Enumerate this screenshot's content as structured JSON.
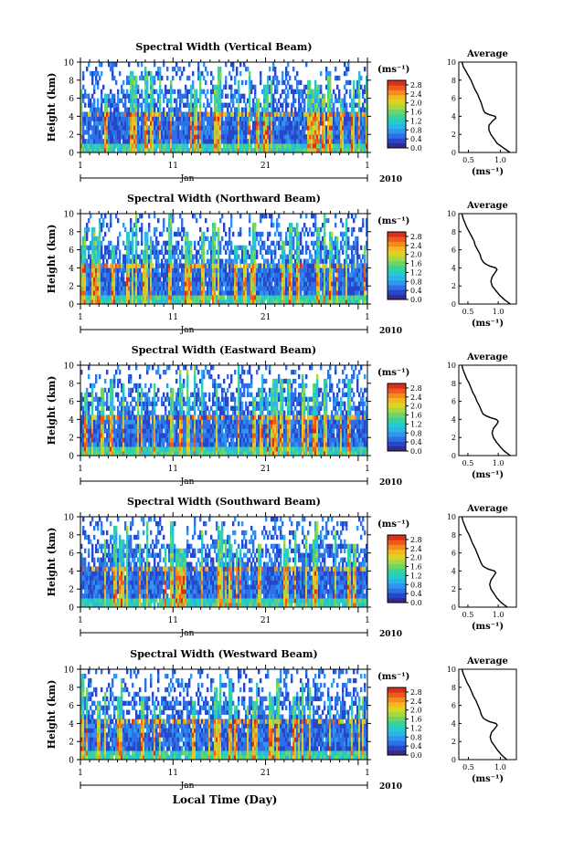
{
  "figure": {
    "x_axis_label": "Local Time (Day)"
  },
  "colors": {
    "colormap": [
      "#3b2a8a",
      "#2846c8",
      "#2f6fe6",
      "#2f96f0",
      "#2ab6e6",
      "#22ccc8",
      "#3ad29a",
      "#6ed466",
      "#a8d840",
      "#dad426",
      "#f5b820",
      "#f58a1e",
      "#ee5a1c",
      "#d8301a"
    ]
  },
  "chart_data": [
    {
      "type": "heatmap",
      "title": "Spectral Width (Vertical Beam)",
      "ylabel": "Height (km)",
      "ylim": [
        0,
        10
      ],
      "yticks": [
        "0",
        "2",
        "4",
        "6",
        "8",
        "10"
      ],
      "xlim": [
        1,
        32
      ],
      "xticks": [
        "1",
        "11",
        "21",
        "1"
      ],
      "x_month_label": "Jan",
      "x_year_label": "2010",
      "colorbar": {
        "unit": "(ms⁻¹)",
        "ticks": [
          "0.0",
          "0.4",
          "0.8",
          "1.2",
          "1.6",
          "2.0",
          "2.4",
          "2.8"
        ],
        "range": [
          0.0,
          3.0
        ]
      },
      "profile": {
        "title": "Average",
        "xlabel": "(ms⁻¹)",
        "xticks": [
          "0.5",
          "1.0"
        ],
        "xlim": [
          0.35,
          1.25
        ],
        "yticks": [
          "0",
          "2",
          "4",
          "6",
          "8",
          "10"
        ],
        "height_km": [
          0,
          0.5,
          1,
          1.5,
          2,
          2.5,
          3,
          3.5,
          3.8,
          4,
          4.2,
          4.4,
          4.6,
          5,
          5.5,
          6,
          6.5,
          7,
          7.5,
          8,
          8.5,
          9,
          9.5,
          10
        ],
        "spectral_width": [
          1.15,
          1.05,
          0.95,
          0.9,
          0.85,
          0.82,
          0.82,
          0.88,
          0.93,
          0.92,
          0.82,
          0.76,
          0.74,
          0.72,
          0.7,
          0.67,
          0.64,
          0.6,
          0.57,
          0.54,
          0.5,
          0.46,
          0.42,
          0.4
        ]
      }
    },
    {
      "type": "heatmap",
      "title": "Spectral Width (Northward Beam)",
      "ylabel": "Height (km)",
      "ylim": [
        0,
        10
      ],
      "yticks": [
        "0",
        "2",
        "4",
        "6",
        "8",
        "10"
      ],
      "xlim": [
        1,
        32
      ],
      "xticks": [
        "1",
        "11",
        "21",
        "1"
      ],
      "x_month_label": "Jan",
      "x_year_label": "2010",
      "colorbar": {
        "unit": "(ms⁻¹)",
        "ticks": [
          "0.0",
          "0.4",
          "0.8",
          "1.2",
          "1.6",
          "2.0",
          "2.4",
          "2.8"
        ],
        "range": [
          0.0,
          3.0
        ]
      },
      "profile": {
        "title": "Average",
        "xlabel": "(ms⁻¹)",
        "xticks": [
          "0.5",
          "1.0"
        ],
        "xlim": [
          0.35,
          1.3
        ],
        "yticks": [
          "0",
          "2",
          "4",
          "6",
          "8",
          "10"
        ],
        "height_km": [
          0,
          0.5,
          1,
          1.5,
          2,
          2.5,
          3,
          3.5,
          3.8,
          4,
          4.2,
          4.4,
          4.6,
          5,
          5.5,
          6,
          6.5,
          7,
          7.5,
          8,
          8.5,
          9,
          9.5,
          10
        ],
        "spectral_width": [
          1.2,
          1.1,
          1.02,
          0.96,
          0.9,
          0.88,
          0.9,
          0.95,
          0.98,
          0.96,
          0.86,
          0.8,
          0.76,
          0.72,
          0.7,
          0.66,
          0.62,
          0.6,
          0.56,
          0.52,
          0.48,
          0.45,
          0.42,
          0.4
        ]
      }
    },
    {
      "type": "heatmap",
      "title": "Spectral Width (Eastward Beam)",
      "ylabel": "Height (km)",
      "ylim": [
        0,
        10
      ],
      "yticks": [
        "0",
        "2",
        "4",
        "6",
        "8",
        "10"
      ],
      "xlim": [
        1,
        32
      ],
      "xticks": [
        "1",
        "11",
        "21",
        "1"
      ],
      "x_month_label": "Jan",
      "x_year_label": "2010",
      "colorbar": {
        "unit": "(ms⁻¹)",
        "ticks": [
          "0.0",
          "0.4",
          "0.8",
          "1.2",
          "1.6",
          "2.0",
          "2.4",
          "2.8"
        ],
        "range": [
          0.0,
          3.0
        ]
      },
      "profile": {
        "title": "Average",
        "xlabel": "(ms⁻¹)",
        "xticks": [
          "0.5",
          "1.0"
        ],
        "xlim": [
          0.35,
          1.3
        ],
        "yticks": [
          "0",
          "2",
          "4",
          "6",
          "8",
          "10"
        ],
        "height_km": [
          0,
          0.5,
          1,
          1.5,
          2,
          2.5,
          3,
          3.5,
          3.8,
          4,
          4.2,
          4.4,
          4.6,
          5,
          5.5,
          6,
          6.5,
          7,
          7.5,
          8,
          8.5,
          9,
          9.5,
          10
        ],
        "spectral_width": [
          1.2,
          1.1,
          1.03,
          0.97,
          0.92,
          0.9,
          0.92,
          0.98,
          1.0,
          0.97,
          0.87,
          0.8,
          0.75,
          0.72,
          0.69,
          0.65,
          0.62,
          0.58,
          0.55,
          0.52,
          0.48,
          0.45,
          0.42,
          0.4
        ]
      }
    },
    {
      "type": "heatmap",
      "title": "Spectral Width (Southward Beam)",
      "ylabel": "Height (km)",
      "ylim": [
        0,
        10
      ],
      "yticks": [
        "0",
        "2",
        "4",
        "6",
        "8",
        "10"
      ],
      "xlim": [
        1,
        32
      ],
      "xticks": [
        "1",
        "11",
        "21",
        "1"
      ],
      "x_month_label": "Jan",
      "x_year_label": "2010",
      "colorbar": {
        "unit": "(ms⁻¹)",
        "ticks": [
          "0.0",
          "0.4",
          "0.8",
          "1.2",
          "1.6",
          "2.0",
          "2.4",
          "2.8"
        ],
        "range": [
          0.0,
          3.0
        ]
      },
      "profile": {
        "title": "Average",
        "xlabel": "(ms⁻¹)",
        "xticks": [
          "0.5",
          "1.0"
        ],
        "xlim": [
          0.35,
          1.3
        ],
        "yticks": [
          "0",
          "2",
          "4",
          "6",
          "8",
          "10"
        ],
        "height_km": [
          0,
          0.5,
          1,
          1.5,
          2,
          2.5,
          3,
          3.5,
          3.8,
          4,
          4.2,
          4.4,
          4.6,
          5,
          5.5,
          6,
          6.5,
          7,
          7.5,
          8,
          8.5,
          9,
          9.5,
          10
        ],
        "spectral_width": [
          1.15,
          1.05,
          0.98,
          0.93,
          0.88,
          0.86,
          0.88,
          0.93,
          0.96,
          0.94,
          0.84,
          0.78,
          0.74,
          0.71,
          0.68,
          0.65,
          0.62,
          0.58,
          0.55,
          0.52,
          0.48,
          0.45,
          0.42,
          0.4
        ]
      }
    },
    {
      "type": "heatmap",
      "title": "Spectral Width (Westward Beam)",
      "ylabel": "Height (km)",
      "ylim": [
        0,
        10
      ],
      "yticks": [
        "0",
        "2",
        "4",
        "6",
        "8",
        "10"
      ],
      "xlim": [
        1,
        32
      ],
      "xticks": [
        "1",
        "11",
        "21",
        "1"
      ],
      "x_month_label": "Jan",
      "x_year_label": "2010",
      "colorbar": {
        "unit": "(ms⁻¹)",
        "ticks": [
          "0.0",
          "0.4",
          "0.8",
          "1.2",
          "1.6",
          "2.0",
          "2.4",
          "2.8"
        ],
        "range": [
          0.0,
          3.0
        ]
      },
      "profile": {
        "title": "Average",
        "xlabel": "(ms⁻¹)",
        "xticks": [
          "0.5",
          "1.0"
        ],
        "xlim": [
          0.35,
          1.25
        ],
        "yticks": [
          "0",
          "2",
          "4",
          "6",
          "8",
          "10"
        ],
        "height_km": [
          0,
          0.5,
          1,
          1.5,
          2,
          2.5,
          3,
          3.5,
          3.8,
          4,
          4.2,
          4.4,
          4.6,
          5,
          5.5,
          6,
          6.5,
          7,
          7.5,
          8,
          8.5,
          9,
          9.5,
          10
        ],
        "spectral_width": [
          1.1,
          1.02,
          0.96,
          0.91,
          0.86,
          0.84,
          0.86,
          0.92,
          0.95,
          0.93,
          0.83,
          0.77,
          0.73,
          0.7,
          0.68,
          0.65,
          0.62,
          0.58,
          0.55,
          0.52,
          0.48,
          0.45,
          0.42,
          0.4
        ]
      }
    }
  ]
}
